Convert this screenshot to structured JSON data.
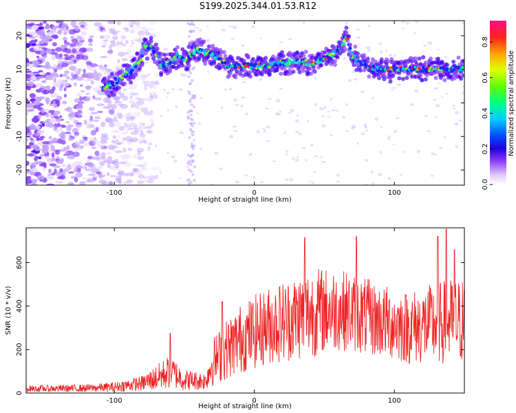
{
  "title": "S199.2025.344.01.53.R12",
  "colors": {
    "snr_line": "#ee2222",
    "signal_palette": [
      "#e8d8ff",
      "#c0a0ff",
      "#8840ff",
      "#4400ee",
      "#0030ff",
      "#00c0ff",
      "#00ff90",
      "#90ff00",
      "#ffd000",
      "#ff4000",
      "#ff1060"
    ]
  },
  "chart_data": [
    {
      "type": "heatmap",
      "xlabel": "Height of straight line (km)",
      "ylabel": "Frequency (Hz)",
      "xlim": [
        -163,
        150
      ],
      "ylim": [
        -24.5,
        24.5
      ],
      "xticks": [
        -100,
        0,
        100
      ],
      "yticks": [
        -20,
        -10,
        0,
        10,
        20
      ],
      "colorbar": {
        "label": "Normalized spectral amplitude",
        "range": [
          0,
          0.92
        ],
        "ticks": [
          0.0,
          0.2,
          0.4,
          0.6,
          0.8
        ]
      },
      "ridge": {
        "x": [
          -108,
          -100,
          -90,
          -82,
          -78,
          -72,
          -66,
          -60,
          -55,
          -48,
          -42,
          -35,
          -30,
          -25,
          -18,
          -10,
          0,
          10,
          20,
          30,
          40,
          50,
          58,
          63,
          66,
          70,
          76,
          82,
          90,
          100,
          110,
          120,
          130,
          140,
          150
        ],
        "frequency": [
          4,
          6,
          9,
          12,
          17,
          16,
          11,
          12,
          14,
          13,
          16,
          15,
          14,
          13,
          11,
          11,
          11,
          11,
          12,
          12,
          12,
          13,
          15,
          17,
          20,
          14,
          12,
          11,
          10,
          10,
          10,
          10,
          10,
          10,
          10
        ]
      }
    },
    {
      "type": "line",
      "xlabel": "Height of straight line (km)",
      "ylabel": "SNR (10 * v/v)",
      "xlim": [
        -163,
        150
      ],
      "ylim": [
        0,
        760
      ],
      "xticks": [
        -100,
        0,
        100
      ],
      "yticks": [
        0,
        200,
        400,
        600
      ],
      "envelope": {
        "x": [
          -163,
          -120,
          -100,
          -80,
          -70,
          -60,
          -50,
          -35,
          -30,
          -20,
          -10,
          0,
          10,
          20,
          30,
          40,
          50,
          60,
          70,
          80,
          90,
          100,
          110,
          120,
          130,
          140,
          150
        ],
        "mean": [
          20,
          22,
          28,
          45,
          70,
          100,
          60,
          55,
          140,
          200,
          250,
          280,
          310,
          330,
          350,
          370,
          380,
          385,
          370,
          350,
          330,
          320,
          300,
          310,
          320,
          330,
          330
        ],
        "spread": [
          15,
          18,
          22,
          35,
          60,
          80,
          50,
          40,
          110,
          140,
          160,
          170,
          180,
          190,
          200,
          210,
          200,
          190,
          180,
          180,
          170,
          170,
          170,
          180,
          190,
          200,
          200
        ]
      },
      "spikes": [
        {
          "x": -60,
          "y": 275
        },
        {
          "x": -23,
          "y": 420
        },
        {
          "x": 36,
          "y": 715
        },
        {
          "x": 73,
          "y": 720
        },
        {
          "x": 131,
          "y": 720
        },
        {
          "x": 137,
          "y": 755
        },
        {
          "x": 143,
          "y": 660
        }
      ]
    }
  ]
}
